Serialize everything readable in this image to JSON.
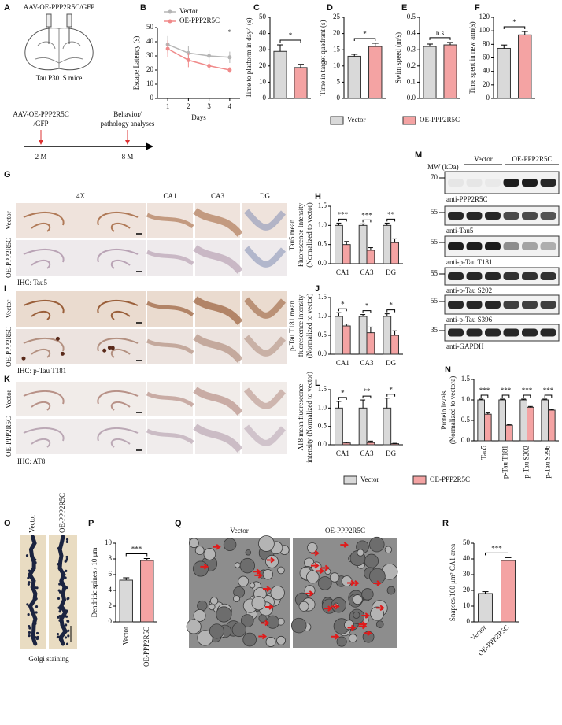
{
  "panel_labels": [
    "A",
    "B",
    "C",
    "D",
    "E",
    "F",
    "G",
    "H",
    "I",
    "J",
    "K",
    "L",
    "M",
    "N",
    "O",
    "P",
    "Q",
    "R"
  ],
  "panel_a": {
    "construct": "AAV-OE-PPP2R5C/GFP",
    "mice": "Tau P301S mice",
    "injection": [
      "AAV-OE-PPP2R5C",
      "/GFP"
    ],
    "analysis": [
      "Behavior/",
      "pathology analyses"
    ],
    "timepoints": [
      "2 M",
      "8 M"
    ]
  },
  "legend_1": [
    {
      "name": "Vector",
      "color": "#d9d9d9"
    },
    {
      "name": "OE-PPP2R5C",
      "color": "#f4a3a3"
    }
  ],
  "legend_2": [
    {
      "name": "Vector",
      "color": "#d9d9d9"
    },
    {
      "name": "OE-PPP2R5C",
      "color": "#f4a3a3"
    }
  ],
  "ihc_columns": [
    "4X",
    "CA1",
    "CA3",
    "DG"
  ],
  "ihc_panels": [
    {
      "rows": [
        "Vector",
        "OE-PPP2R5C"
      ],
      "stain": "IHC: Tau5"
    },
    {
      "rows": [
        "Vector",
        "OE-PPP2R5C"
      ],
      "stain": "IHC: p-Tau T181"
    },
    {
      "rows": [
        "Vector",
        "OE-PPP2R5C"
      ],
      "stain": "IHC: AT8"
    }
  ],
  "western": {
    "mw_label": "MW (kDa)",
    "groups": [
      "Vector",
      "OE-PPP2R5C"
    ],
    "blots": [
      {
        "mw": 70,
        "antibody": "anti-PPP2R5C"
      },
      {
        "mw": 55,
        "antibody": "anti-Tau5"
      },
      {
        "mw": 55,
        "antibody": "anti-p-Tau T181"
      },
      {
        "mw": 55,
        "antibody": "anti-p-Tau S202"
      },
      {
        "mw": 55,
        "antibody": "anti-p-Tau S396"
      },
      {
        "mw": 35,
        "antibody": "anti-GAPDH"
      }
    ]
  },
  "golgi": {
    "groups": [
      "Vector",
      "OE-PPP2R5C"
    ],
    "caption": "Golgi staining"
  },
  "em": {
    "groups": [
      "Vector",
      "OE-PPP2R5C"
    ]
  },
  "chart_data": [
    {
      "type": "line",
      "ylabel": "Escape Latency (s)",
      "xlabel": "Days",
      "x": [
        1,
        2,
        3,
        4
      ],
      "xlim": [
        0.5,
        4.5
      ],
      "xticks": [
        1,
        2,
        3,
        4
      ],
      "ylim": [
        0,
        50
      ],
      "yticks": [
        0,
        10,
        20,
        30,
        40,
        50
      ],
      "series": [
        {
          "name": "Vector",
          "color": "#b5b5b5",
          "values": [
            38,
            32,
            30,
            29
          ],
          "errors": [
            6,
            5,
            4,
            4
          ]
        },
        {
          "name": "OE-PPP2R5C",
          "color": "#f08a8a",
          "values": [
            35,
            27,
            23,
            20
          ],
          "errors": [
            6,
            5,
            3,
            2
          ]
        }
      ],
      "annotations": [
        {
          "text": "*",
          "x": 4
        }
      ]
    },
    {
      "type": "bar",
      "ylabel": "Time to platform in day4 (s)",
      "values": [
        29,
        19
      ],
      "errors": [
        4,
        2
      ],
      "colors": [
        "#d9d9d9",
        "#f4a3a3"
      ],
      "ylim": [
        0,
        50
      ],
      "yticks": [
        0,
        10,
        20,
        30,
        40,
        50
      ],
      "significance": "*"
    },
    {
      "type": "bar",
      "ylabel": "Time in target quadrant (s)",
      "values": [
        13,
        16
      ],
      "errors": [
        0.6,
        1
      ],
      "colors": [
        "#d9d9d9",
        "#f4a3a3"
      ],
      "ylim": [
        0,
        25
      ],
      "yticks": [
        0,
        5,
        10,
        15,
        20,
        25
      ],
      "significance": "*"
    },
    {
      "type": "bar",
      "ylabel": "Swim speed (m/s)",
      "values": [
        0.32,
        0.33
      ],
      "errors": [
        0.015,
        0.015
      ],
      "colors": [
        "#d9d9d9",
        "#f4a3a3"
      ],
      "ylim": [
        0,
        0.5
      ],
      "yticks": [
        {
          "value": 0,
          "label": "0.0"
        },
        0.1,
        0.2,
        0.3,
        0.4,
        0.5
      ],
      "significance": "n.s"
    },
    {
      "type": "bar",
      "ylabel": "Time spent in new arm(s)",
      "values": [
        74,
        94
      ],
      "errors": [
        5,
        5
      ],
      "colors": [
        "#d9d9d9",
        "#f4a3a3"
      ],
      "ylim": [
        0,
        120
      ],
      "yticks": [
        0,
        20,
        40,
        60,
        80,
        100,
        120
      ],
      "significance": "*"
    },
    {
      "type": "grouped_bar",
      "ylabel": [
        "Tau5 mean",
        "Fluorescence Intensity",
        "(Normalized to vector)"
      ],
      "categories": [
        "CA1",
        "CA3",
        "DG"
      ],
      "ylim": [
        0,
        1.5
      ],
      "yticks": [
        {
          "value": 0,
          "label": "0.0"
        },
        0.5,
        {
          "value": 1,
          "label": "1.0"
        },
        1.5
      ],
      "series": [
        {
          "color": "#d9d9d9",
          "values": [
            1,
            1,
            1
          ],
          "errors": [
            0.06,
            0.04,
            0.06
          ]
        },
        {
          "color": "#f4a3a3",
          "values": [
            0.5,
            0.35,
            0.55
          ],
          "errors": [
            0.08,
            0.07,
            0.1
          ]
        }
      ],
      "significance": [
        "***",
        "***",
        "**"
      ]
    },
    {
      "type": "grouped_bar",
      "ylabel": [
        "p-Tau T181 mean",
        "fluorescence intensity",
        "(Normalized to vector)"
      ],
      "categories": [
        "CA1",
        "CA3",
        "DG"
      ],
      "ylim": [
        0,
        1.5
      ],
      "yticks": [
        {
          "value": 0,
          "label": "0.0"
        },
        0.5,
        {
          "value": 1,
          "label": "1.0"
        },
        1.5
      ],
      "series": [
        {
          "color": "#d9d9d9",
          "values": [
            1,
            1,
            1
          ],
          "errors": [
            0.1,
            0.05,
            0.07
          ]
        },
        {
          "color": "#f4a3a3",
          "values": [
            0.75,
            0.57,
            0.5
          ],
          "errors": [
            0.05,
            0.15,
            0.12
          ]
        }
      ],
      "significance": [
        "*",
        "*",
        "*"
      ]
    },
    {
      "type": "grouped_bar",
      "ylabel": [
        "AT8 mean fluorescence",
        "intensity (Normalized to vector)"
      ],
      "categories": [
        "CA1",
        "CA3",
        "DG"
      ],
      "ylim": [
        0,
        1.5
      ],
      "yticks": [
        {
          "value": 0,
          "label": "0.0"
        },
        0.5,
        {
          "value": 1,
          "label": "1.0"
        },
        1.5
      ],
      "series": [
        {
          "color": "#d9d9d9",
          "values": [
            1,
            1,
            1
          ],
          "errors": [
            0.18,
            0.22,
            0.27
          ]
        },
        {
          "color": "#f4a3a3",
          "values": [
            0.05,
            0.06,
            0.03
          ],
          "errors": [
            0.02,
            0.04,
            0.01
          ]
        }
      ],
      "significance": [
        "*",
        "**",
        "*"
      ]
    },
    {
      "type": "grouped_bar",
      "ylabel": [
        "Protein levels",
        "(Normalized to vectora)"
      ],
      "categories": [
        "Tau5",
        "p-Tau T181",
        "p-Tau S202",
        "p-Tau S396"
      ],
      "label_rotation": 90,
      "ylim": [
        0,
        1.5
      ],
      "yticks": [
        {
          "value": 0,
          "label": "0.0"
        },
        0.5,
        {
          "value": 1,
          "label": "1.0"
        },
        1.5
      ],
      "series": [
        {
          "color": "#d9d9d9",
          "values": [
            1,
            1,
            1,
            1
          ],
          "errors": [
            0.02,
            0.02,
            0.02,
            0.02
          ]
        },
        {
          "color": "#f4a3a3",
          "values": [
            0.65,
            0.38,
            0.82,
            0.75
          ],
          "errors": [
            0.03,
            0.02,
            0.02,
            0.02
          ]
        }
      ],
      "significance": [
        "***",
        "***",
        "***",
        "***"
      ]
    },
    {
      "type": "bar",
      "ylabel": "Dendritic spines / 10 μm",
      "categories": [
        "Vector",
        "OE-PPP2R5C"
      ],
      "label_rotation": 90,
      "values": [
        5.3,
        7.8
      ],
      "errors": [
        0.3,
        0.25
      ],
      "colors": [
        "#d9d9d9",
        "#f4a3a3"
      ],
      "ylim": [
        0,
        10
      ],
      "yticks": [
        0,
        2,
        4,
        6,
        8,
        10
      ],
      "significance": "***"
    },
    {
      "type": "bar",
      "ylabel": "Snapses/100 μm² CA1 area",
      "categories": [
        "Vector",
        "OE-PPP2R5C"
      ],
      "label_rotation": 45,
      "values": [
        18,
        39
      ],
      "errors": [
        1.2,
        1.8
      ],
      "colors": [
        "#d9d9d9",
        "#f4a3a3"
      ],
      "ylim": [
        0,
        50
      ],
      "yticks": [
        0,
        10,
        20,
        30,
        40,
        50
      ],
      "significance": "***"
    }
  ]
}
